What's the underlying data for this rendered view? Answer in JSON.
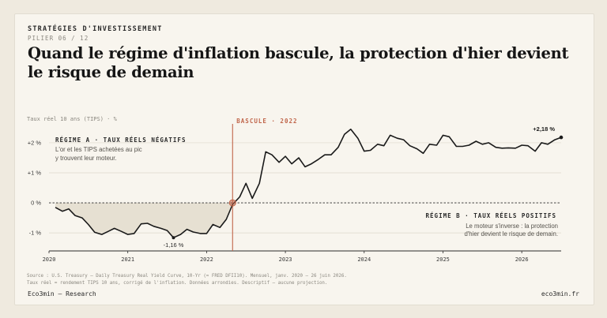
{
  "header": {
    "eyebrow": "STRATÉGIES D'INVESTISSEMENT",
    "pill": "PILIER 06 / 12",
    "title": "Quand le régime d'inflation bascule, la protection d'hier devient le risque de demain"
  },
  "footer": {
    "left": "Eco3min — Research",
    "right": "eco3min.fr"
  },
  "colors": {
    "line": "#1a1a1a",
    "accent": "#c0654a",
    "shade": "#e6e0d2"
  },
  "chart_data": {
    "type": "line",
    "ylabel": "Taux réel 10 ans (TIPS) · %",
    "ylim": [
      -1.6,
      2.55
    ],
    "xlim": [
      2020.0,
      2026.5
    ],
    "y_ticks": [
      {
        "value": 2,
        "label": "+2 %"
      },
      {
        "value": 1,
        "label": "+1 %"
      },
      {
        "value": 0,
        "label": "0 %"
      },
      {
        "value": -1,
        "label": "-1 %"
      }
    ],
    "x_ticks": [
      {
        "value": 2020,
        "label": "2020"
      },
      {
        "value": 2021,
        "label": "2021"
      },
      {
        "value": 2022,
        "label": "2022"
      },
      {
        "value": 2023,
        "label": "2023"
      },
      {
        "value": 2024,
        "label": "2024"
      },
      {
        "value": 2025,
        "label": "2025"
      },
      {
        "value": 2026,
        "label": "2026"
      }
    ],
    "series": [
      {
        "points": [
          [
            2020.08,
            -0.15
          ],
          [
            2020.17,
            -0.28
          ],
          [
            2020.25,
            -0.2
          ],
          [
            2020.33,
            -0.42
          ],
          [
            2020.42,
            -0.5
          ],
          [
            2020.5,
            -0.72
          ],
          [
            2020.58,
            -0.98
          ],
          [
            2020.67,
            -1.05
          ],
          [
            2020.75,
            -0.95
          ],
          [
            2020.83,
            -0.85
          ],
          [
            2020.92,
            -0.95
          ],
          [
            2021.0,
            -1.05
          ],
          [
            2021.08,
            -1.02
          ],
          [
            2021.17,
            -0.7
          ],
          [
            2021.25,
            -0.68
          ],
          [
            2021.33,
            -0.78
          ],
          [
            2021.42,
            -0.85
          ],
          [
            2021.5,
            -0.92
          ],
          [
            2021.58,
            -1.16
          ],
          [
            2021.67,
            -1.05
          ],
          [
            2021.75,
            -0.88
          ],
          [
            2021.83,
            -0.97
          ],
          [
            2021.92,
            -1.02
          ],
          [
            2022.0,
            -1.02
          ],
          [
            2022.08,
            -0.72
          ],
          [
            2022.17,
            -0.82
          ],
          [
            2022.25,
            -0.55
          ],
          [
            2022.33,
            -0.05
          ],
          [
            2022.42,
            0.2
          ],
          [
            2022.5,
            0.65
          ],
          [
            2022.58,
            0.15
          ],
          [
            2022.67,
            0.65
          ],
          [
            2022.75,
            1.7
          ],
          [
            2022.83,
            1.6
          ],
          [
            2022.92,
            1.35
          ],
          [
            2023.0,
            1.55
          ],
          [
            2023.08,
            1.3
          ],
          [
            2023.17,
            1.5
          ],
          [
            2023.25,
            1.2
          ],
          [
            2023.33,
            1.3
          ],
          [
            2023.42,
            1.45
          ],
          [
            2023.5,
            1.6
          ],
          [
            2023.58,
            1.6
          ],
          [
            2023.67,
            1.85
          ],
          [
            2023.75,
            2.28
          ],
          [
            2023.83,
            2.45
          ],
          [
            2023.92,
            2.15
          ],
          [
            2024.0,
            1.72
          ],
          [
            2024.08,
            1.75
          ],
          [
            2024.17,
            1.95
          ],
          [
            2024.25,
            1.9
          ],
          [
            2024.33,
            2.25
          ],
          [
            2024.42,
            2.15
          ],
          [
            2024.5,
            2.1
          ],
          [
            2024.58,
            1.9
          ],
          [
            2024.67,
            1.8
          ],
          [
            2024.75,
            1.65
          ],
          [
            2024.83,
            1.95
          ],
          [
            2024.92,
            1.92
          ],
          [
            2025.0,
            2.25
          ],
          [
            2025.08,
            2.2
          ],
          [
            2025.17,
            1.88
          ],
          [
            2025.25,
            1.88
          ],
          [
            2025.33,
            1.92
          ],
          [
            2025.42,
            2.05
          ],
          [
            2025.5,
            1.95
          ],
          [
            2025.58,
            2.0
          ],
          [
            2025.67,
            1.85
          ],
          [
            2025.75,
            1.82
          ],
          [
            2025.83,
            1.83
          ],
          [
            2025.92,
            1.82
          ],
          [
            2026.0,
            1.92
          ],
          [
            2026.08,
            1.9
          ],
          [
            2026.17,
            1.72
          ],
          [
            2026.25,
            2.0
          ],
          [
            2026.33,
            1.95
          ],
          [
            2026.42,
            2.1
          ],
          [
            2026.5,
            2.18
          ]
        ]
      }
    ],
    "regime_switch": {
      "x": 2022.33,
      "label": "BASCULE · 2022"
    },
    "annotations": {
      "min": {
        "x": 2021.58,
        "y": -1.16,
        "label": "-1,16 %"
      },
      "last": {
        "x": 2026.5,
        "y": 2.18,
        "label": "+2,18 %"
      }
    },
    "regime_a": {
      "title": "RÉGIME A · TAUX RÉELS NÉGATIFS",
      "line1": "L'or et les TIPS achetées au pic",
      "line2": "y trouvent leur moteur."
    },
    "regime_b": {
      "title": "RÉGIME B · TAUX RÉELS POSITIFS",
      "line1": "Le moteur s'inverse : la protection",
      "line2": "d'hier devient le risque de demain."
    },
    "source_line1": "Source : U.S. Treasury — Daily Treasury Real Yield Curve, 10-Yr (≈ FRED DFII10). Mensuel, janv. 2020 – 26 juin 2026.",
    "source_line2": "Taux réel = rendement TIPS 10 ans, corrigé de l'inflation. Données arrondies. Descriptif — aucune projection."
  }
}
